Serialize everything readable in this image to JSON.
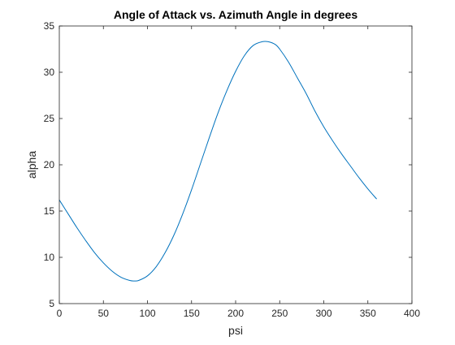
{
  "chart_data": {
    "type": "line",
    "title": "Angle of Attack vs. Azimuth Angle in degrees",
    "xlabel": "psi",
    "ylabel": "alpha",
    "xlim": [
      0,
      400
    ],
    "ylim": [
      5,
      35
    ],
    "xticks": [
      0,
      50,
      100,
      150,
      200,
      250,
      300,
      350,
      400
    ],
    "yticks": [
      5,
      10,
      15,
      20,
      25,
      30,
      35
    ],
    "grid": false,
    "legend": "none",
    "series": [
      {
        "color": "#0072bd",
        "x": [
          0,
          10,
          20,
          30,
          40,
          50,
          60,
          70,
          80,
          85,
          90,
          100,
          110,
          120,
          130,
          140,
          150,
          160,
          170,
          180,
          190,
          200,
          210,
          220,
          230,
          237,
          245,
          250,
          260,
          270,
          280,
          290,
          300,
          310,
          320,
          330,
          340,
          350,
          360
        ],
        "y": [
          16.2,
          14.7,
          13.2,
          11.8,
          10.5,
          9.4,
          8.5,
          7.85,
          7.5,
          7.45,
          7.5,
          8.0,
          9.0,
          10.5,
          12.4,
          14.7,
          17.3,
          20.1,
          22.9,
          25.6,
          28.0,
          30.1,
          31.8,
          32.9,
          33.3,
          33.3,
          33.0,
          32.5,
          31.1,
          29.4,
          27.7,
          25.8,
          24.1,
          22.6,
          21.2,
          19.9,
          18.6,
          17.4,
          16.3
        ]
      }
    ]
  }
}
